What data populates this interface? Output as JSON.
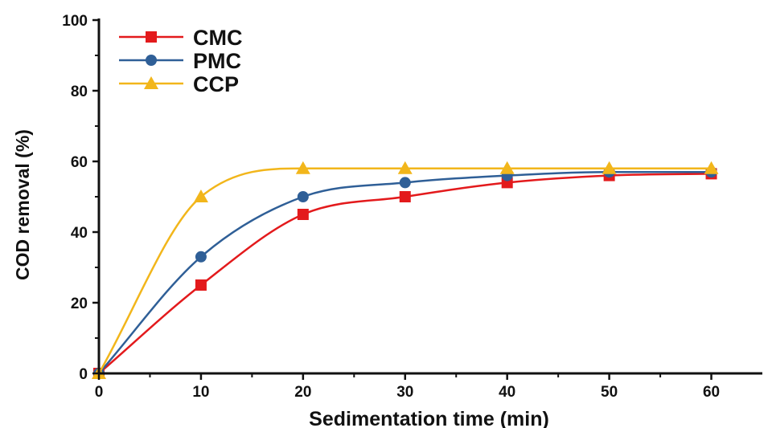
{
  "chart_data": {
    "type": "line",
    "title": "",
    "xlabel": "Sedimentation time (min)",
    "ylabel": "COD removal (%)",
    "xlim": [
      0,
      65
    ],
    "ylim": [
      0,
      100
    ],
    "xticks": [
      0,
      10,
      20,
      30,
      40,
      50,
      60
    ],
    "yticks": [
      0,
      20,
      40,
      60,
      80,
      100
    ],
    "grid": false,
    "legend_position": "top-left",
    "series": [
      {
        "name": "CMC",
        "color": "#e31a1c",
        "marker": "square",
        "x": [
          0,
          10,
          20,
          30,
          40,
          50,
          60
        ],
        "y": [
          0,
          25,
          45,
          50,
          54,
          56,
          56.5
        ]
      },
      {
        "name": "PMC",
        "color": "#2f5f97",
        "marker": "circle",
        "x": [
          0,
          10,
          20,
          30,
          40,
          50,
          60
        ],
        "y": [
          0,
          33,
          50,
          54,
          56,
          57,
          57
        ]
      },
      {
        "name": "CCP",
        "color": "#f2b61b",
        "marker": "triangle",
        "x": [
          0,
          10,
          20,
          30,
          40,
          50,
          60
        ],
        "y": [
          0,
          50,
          58,
          58,
          58,
          58,
          58
        ]
      }
    ]
  }
}
